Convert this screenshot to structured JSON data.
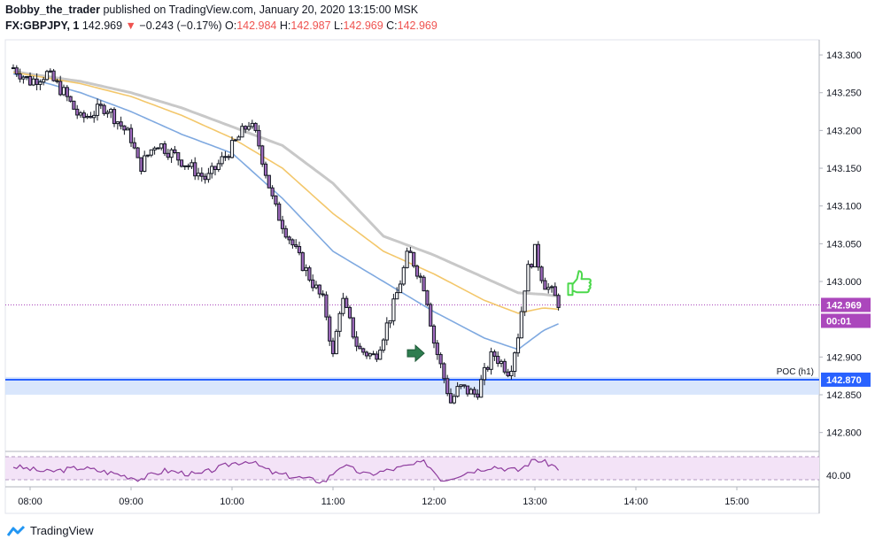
{
  "header": {
    "author": "Bobby_the_trader",
    "published": "published on TradingView.com, January 20, 2020 13:15:00 MSK",
    "symbol": "FX:GBPJPY, 1",
    "last": "142.969",
    "arrow": "▼",
    "change": "−0.243 (−0.17%)",
    "o_label": "O:",
    "o_value": "142.984",
    "h_label": "H:",
    "h_value": "142.987",
    "l_label": "L:",
    "l_value": "142.969",
    "c_label": "C:",
    "c_value": "142.969"
  },
  "chart_data": {
    "type": "candlestick",
    "symbol": "FX:GBPJPY",
    "interval": "1 minute",
    "y_ticks": [
      "143.300",
      "143.250",
      "143.200",
      "143.150",
      "143.100",
      "143.050",
      "143.000",
      "142.969",
      "142.900",
      "142.870",
      "142.850",
      "142.800"
    ],
    "ylim": [
      142.775,
      143.32
    ],
    "x_ticks": [
      "08:00",
      "09:00",
      "10:00",
      "11:00",
      "12:00",
      "13:00",
      "14:00",
      "15:00"
    ],
    "price_path": [
      [
        "07:50",
        143.283
      ],
      [
        "08:00",
        143.265
      ],
      [
        "08:10",
        143.275
      ],
      [
        "08:20",
        143.25
      ],
      [
        "08:30",
        143.215
      ],
      [
        "08:45",
        143.232
      ],
      [
        "09:00",
        143.19
      ],
      [
        "09:05",
        143.15
      ],
      [
        "09:15",
        143.185
      ],
      [
        "09:30",
        143.16
      ],
      [
        "09:45",
        143.135
      ],
      [
        "10:00",
        143.178
      ],
      [
        "10:10",
        143.21
      ],
      [
        "10:15",
        143.19
      ],
      [
        "10:25",
        143.1
      ],
      [
        "10:40",
        143.03
      ],
      [
        "10:55",
        142.97
      ],
      [
        "11:00",
        142.9
      ],
      [
        "11:05",
        142.98
      ],
      [
        "11:15",
        142.91
      ],
      [
        "11:25",
        142.9
      ],
      [
        "11:35",
        142.96
      ],
      [
        "11:45",
        143.04
      ],
      [
        "11:55",
        142.99
      ],
      [
        "12:00",
        142.92
      ],
      [
        "12:05",
        142.88
      ],
      [
        "12:10",
        142.84
      ],
      [
        "12:15",
        142.86
      ],
      [
        "12:25",
        142.85
      ],
      [
        "12:35",
        142.905
      ],
      [
        "12:45",
        142.88
      ],
      [
        "12:50",
        142.93
      ],
      [
        "12:55",
        143.01
      ],
      [
        "13:00",
        143.04
      ],
      [
        "13:05",
        143.0
      ],
      [
        "13:10",
        142.985
      ],
      [
        "13:15",
        142.969
      ]
    ],
    "ma_slow_path": [
      [
        "07:50",
        143.278
      ],
      [
        "08:30",
        143.265
      ],
      [
        "09:00",
        143.25
      ],
      [
        "09:30",
        143.23
      ],
      [
        "10:00",
        143.205
      ],
      [
        "10:30",
        143.18
      ],
      [
        "11:00",
        143.13
      ],
      [
        "11:30",
        143.06
      ],
      [
        "12:00",
        143.035
      ],
      [
        "12:30",
        143.005
      ],
      [
        "12:50",
        142.985
      ],
      [
        "13:05",
        142.983
      ],
      [
        "13:15",
        142.98
      ]
    ],
    "ma_mid_path": [
      [
        "07:50",
        143.277
      ],
      [
        "08:30",
        143.262
      ],
      [
        "09:00",
        143.245
      ],
      [
        "09:30",
        143.22
      ],
      [
        "10:00",
        143.19
      ],
      [
        "10:30",
        143.15
      ],
      [
        "11:00",
        143.09
      ],
      [
        "11:30",
        143.04
      ],
      [
        "12:00",
        143.01
      ],
      [
        "12:30",
        142.975
      ],
      [
        "12:50",
        142.958
      ],
      [
        "13:05",
        142.965
      ],
      [
        "13:15",
        142.963
      ]
    ],
    "ma_fast_path": [
      [
        "07:50",
        143.275
      ],
      [
        "08:30",
        143.25
      ],
      [
        "09:00",
        143.225
      ],
      [
        "09:30",
        143.195
      ],
      [
        "10:00",
        143.17
      ],
      [
        "10:30",
        143.11
      ],
      [
        "11:00",
        143.04
      ],
      [
        "11:30",
        143.0
      ],
      [
        "12:00",
        142.96
      ],
      [
        "12:30",
        142.925
      ],
      [
        "12:50",
        142.91
      ],
      [
        "13:05",
        142.935
      ],
      [
        "13:15",
        142.945
      ]
    ],
    "poc_level": 142.87,
    "poc_label": "POC (h1)",
    "poc_tag": "142.870",
    "last_price_tag": "142.969",
    "countdown_tag": "00:01",
    "rsi_tick": "40.00",
    "rsi_path": [
      [
        "07:50",
        47
      ],
      [
        "08:10",
        43
      ],
      [
        "08:30",
        46
      ],
      [
        "08:50",
        42
      ],
      [
        "09:05",
        38
      ],
      [
        "09:20",
        44
      ],
      [
        "09:40",
        41
      ],
      [
        "10:00",
        49
      ],
      [
        "10:10",
        51
      ],
      [
        "10:25",
        42
      ],
      [
        "10:40",
        39
      ],
      [
        "10:55",
        36
      ],
      [
        "11:05",
        48
      ],
      [
        "11:20",
        41
      ],
      [
        "11:40",
        46
      ],
      [
        "11:55",
        50
      ],
      [
        "12:05",
        37
      ],
      [
        "12:20",
        43
      ],
      [
        "12:35",
        47
      ],
      [
        "12:50",
        44
      ],
      [
        "13:00",
        52
      ],
      [
        "13:10",
        48
      ],
      [
        "13:15",
        45
      ]
    ],
    "colors": {
      "candle_up": "#ffffff",
      "candle_down": "#a06bbf",
      "wick": "#131722",
      "ma_slow": "#c8c8c8",
      "ma_mid": "#f3c76b",
      "ma_fast": "#7fa9e0",
      "poc": "#2962ff",
      "last_price": "#ab47bc",
      "rsi": "#8e3c9e"
    },
    "markers": [
      {
        "type": "arrow-right",
        "at": [
          "11:50",
          142.905
        ],
        "color": "#2e7d4f"
      },
      {
        "type": "thumbs-up",
        "at": [
          "13:25",
          142.995
        ],
        "color": "#4cd84c"
      }
    ]
  },
  "footer": {
    "brand": "TradingView"
  }
}
